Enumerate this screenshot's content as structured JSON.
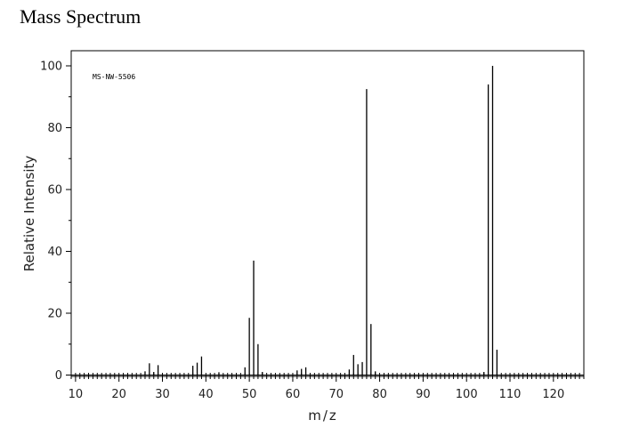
{
  "page_title": "Mass Spectrum",
  "chart_data": {
    "type": "bar",
    "title": "",
    "code_label": "MS-NW-5506",
    "xlabel": "m/z",
    "ylabel": "Relative Intensity",
    "xlim": [
      9,
      127
    ],
    "ylim": [
      0,
      100
    ],
    "xticks": [
      10,
      20,
      30,
      40,
      50,
      60,
      70,
      80,
      90,
      100,
      110,
      120
    ],
    "yticks": [
      0,
      20,
      40,
      60,
      80,
      100
    ],
    "grid": false,
    "peaks": [
      {
        "mz": 26,
        "intensity": 1.2
      },
      {
        "mz": 27,
        "intensity": 3.8
      },
      {
        "mz": 28,
        "intensity": 1.0
      },
      {
        "mz": 29,
        "intensity": 3.2
      },
      {
        "mz": 37,
        "intensity": 3.0
      },
      {
        "mz": 38,
        "intensity": 4.0
      },
      {
        "mz": 39,
        "intensity": 6.0
      },
      {
        "mz": 43,
        "intensity": 0.9
      },
      {
        "mz": 49,
        "intensity": 2.5
      },
      {
        "mz": 50,
        "intensity": 18.5
      },
      {
        "mz": 51,
        "intensity": 37.0
      },
      {
        "mz": 52,
        "intensity": 10.0
      },
      {
        "mz": 53,
        "intensity": 1.0
      },
      {
        "mz": 61,
        "intensity": 1.5
      },
      {
        "mz": 62,
        "intensity": 2.0
      },
      {
        "mz": 63,
        "intensity": 2.5
      },
      {
        "mz": 73,
        "intensity": 1.8
      },
      {
        "mz": 74,
        "intensity": 6.5
      },
      {
        "mz": 75,
        "intensity": 3.5
      },
      {
        "mz": 76,
        "intensity": 4.2
      },
      {
        "mz": 77,
        "intensity": 92.5
      },
      {
        "mz": 78,
        "intensity": 16.5
      },
      {
        "mz": 79,
        "intensity": 1.2
      },
      {
        "mz": 104,
        "intensity": 1.0
      },
      {
        "mz": 105,
        "intensity": 94.0
      },
      {
        "mz": 106,
        "intensity": 100.0
      },
      {
        "mz": 107,
        "intensity": 8.2
      }
    ]
  }
}
